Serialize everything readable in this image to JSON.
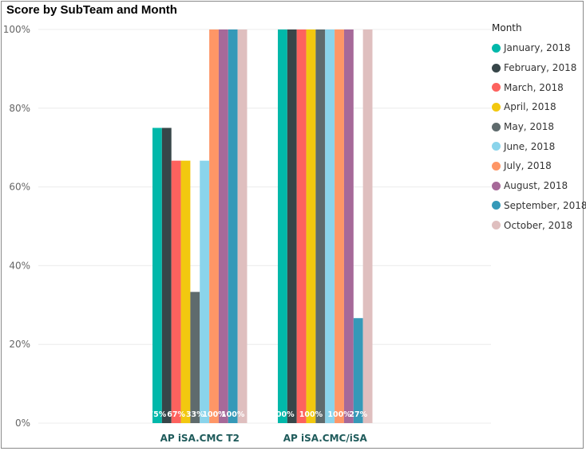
{
  "chart_data": {
    "type": "bar",
    "title": "Score by SubTeam and Month",
    "categories": [
      "AP iSA.CMC T2",
      "AP iSA.CMC/iSA"
    ],
    "y_ticks": [
      "0%",
      "20%",
      "40%",
      "60%",
      "80%",
      "100%"
    ],
    "ylim": [
      0,
      100
    ],
    "grid": true,
    "legend_title": "Month",
    "legend_position": "right",
    "series": [
      {
        "name": "January, 2018",
        "color": "#01B8AA",
        "values": [
          75,
          100
        ],
        "labels": [
          "75%",
          "100%"
        ]
      },
      {
        "name": "February, 2018",
        "color": "#374649",
        "values": [
          75,
          100
        ],
        "labels": [
          "",
          ""
        ]
      },
      {
        "name": "March, 2018",
        "color": "#FD625E",
        "values": [
          66.67,
          100
        ],
        "labels": [
          "67%",
          ""
        ]
      },
      {
        "name": "April, 2018",
        "color": "#F2C80F",
        "values": [
          66.67,
          100
        ],
        "labels": [
          "",
          "100%"
        ]
      },
      {
        "name": "May, 2018",
        "color": "#5F6B6D",
        "values": [
          33.33,
          100
        ],
        "labels": [
          "33%",
          ""
        ]
      },
      {
        "name": "June, 2018",
        "color": "#8AD4EB",
        "values": [
          66.67,
          100
        ],
        "labels": [
          "",
          ""
        ]
      },
      {
        "name": "July, 2018",
        "color": "#FE9666",
        "values": [
          100,
          100
        ],
        "labels": [
          "100%",
          "100%"
        ]
      },
      {
        "name": "August, 2018",
        "color": "#A66999",
        "values": [
          100,
          100
        ],
        "labels": [
          "",
          ""
        ]
      },
      {
        "name": "September, 2018",
        "color": "#3599B8",
        "values": [
          100,
          26.67
        ],
        "labels": [
          "100%",
          "27%"
        ]
      },
      {
        "name": "October, 2018",
        "color": "#DFBFBF",
        "values": [
          100,
          100
        ],
        "labels": [
          "",
          ""
        ]
      }
    ]
  }
}
